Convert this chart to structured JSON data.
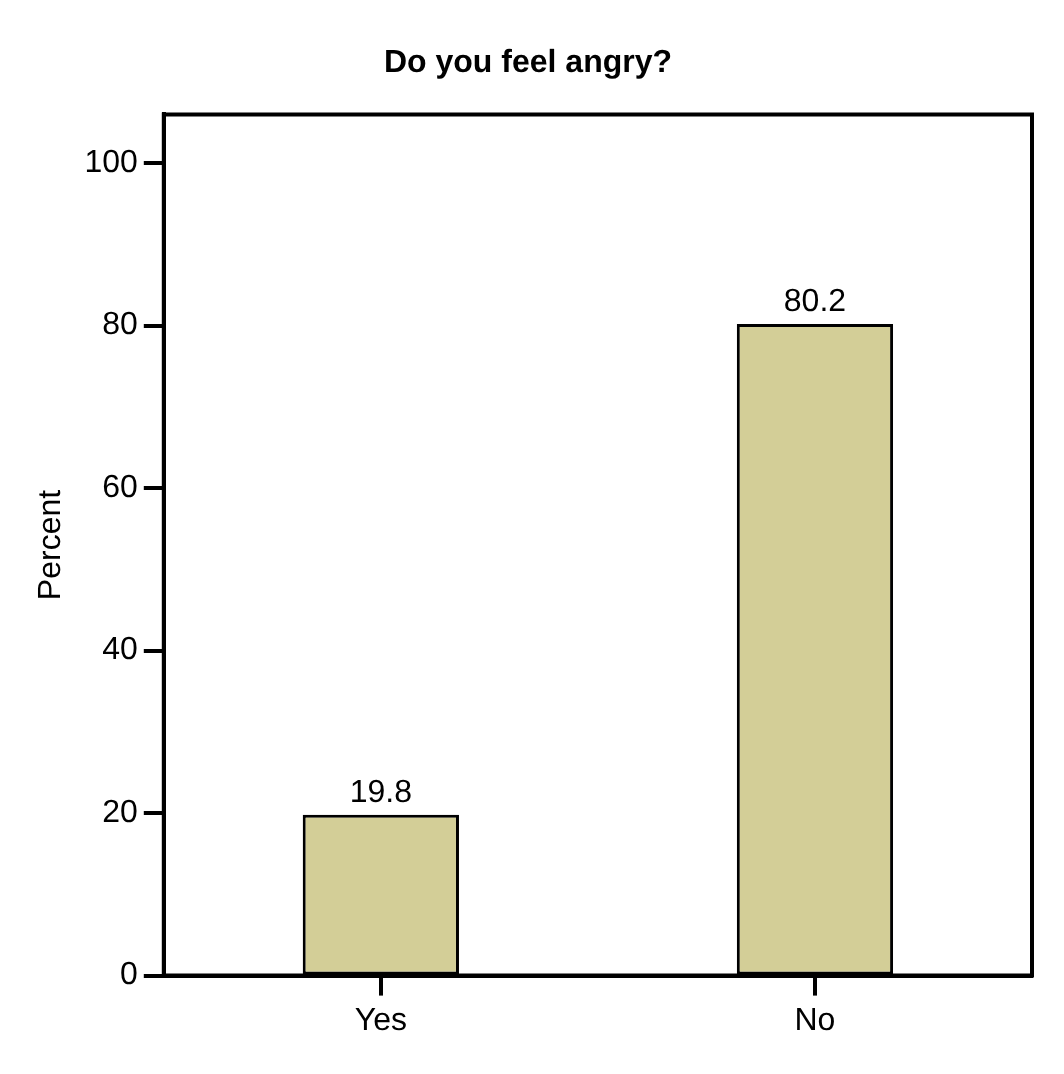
{
  "chart_data": {
    "type": "bar",
    "title": "Do you feel angry?",
    "ylabel": "Percent",
    "categories": [
      "Yes",
      "No"
    ],
    "values": [
      19.8,
      80.2
    ],
    "color": "#d3ce97",
    "ylim": [
      0,
      106
    ],
    "yticks": [
      0,
      20,
      40,
      60,
      80,
      100
    ],
    "grid": false,
    "legend": false,
    "data_labels": true
  }
}
